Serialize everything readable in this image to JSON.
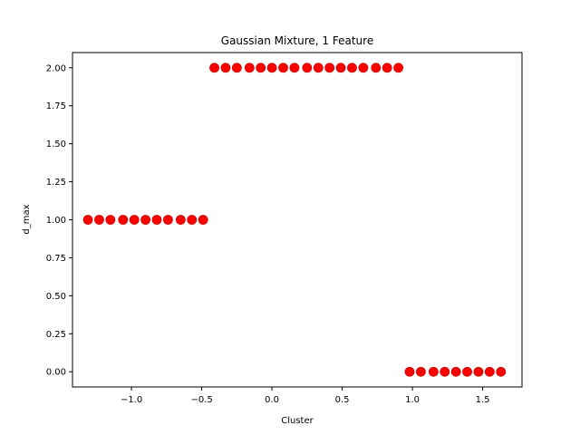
{
  "chart_data": {
    "type": "scatter",
    "title": "Gaussian Mixture, 1 Feature",
    "xlabel": "Cluster",
    "ylabel": "d_max",
    "xlim": [
      -1.42,
      1.78
    ],
    "ylim": [
      -0.1,
      2.1
    ],
    "x_ticks": [
      -1.0,
      -0.5,
      0.0,
      0.5,
      1.0,
      1.5
    ],
    "x_tick_labels": [
      "−1.0",
      "−0.5",
      "0.0",
      "0.5",
      "1.0",
      "1.5"
    ],
    "y_ticks": [
      0.0,
      0.25,
      0.5,
      0.75,
      1.0,
      1.25,
      1.5,
      1.75,
      2.0
    ],
    "y_tick_labels": [
      "0.00",
      "0.25",
      "0.50",
      "0.75",
      "1.00",
      "1.25",
      "1.50",
      "1.75",
      "2.00"
    ],
    "grid": false,
    "marker_color": "#ff0000",
    "marker_edge_color": "#cc0000",
    "x": [
      -1.31,
      -1.23,
      -1.15,
      -1.06,
      -0.98,
      -0.9,
      -0.82,
      -0.74,
      -0.65,
      -0.57,
      -0.49,
      -0.41,
      -0.33,
      -0.25,
      -0.16,
      -0.08,
      0.0,
      0.08,
      0.16,
      0.25,
      0.33,
      0.41,
      0.49,
      0.57,
      0.65,
      0.74,
      0.82,
      0.9,
      0.98,
      1.06,
      1.15,
      1.23,
      1.31,
      1.39,
      1.47,
      1.55,
      1.63
    ],
    "y": [
      1,
      1,
      1,
      1,
      1,
      1,
      1,
      1,
      1,
      1,
      1,
      2,
      2,
      2,
      2,
      2,
      2,
      2,
      2,
      2,
      2,
      2,
      2,
      2,
      2,
      2,
      2,
      2,
      0,
      0,
      0,
      0,
      0,
      0,
      0,
      0,
      0
    ]
  }
}
